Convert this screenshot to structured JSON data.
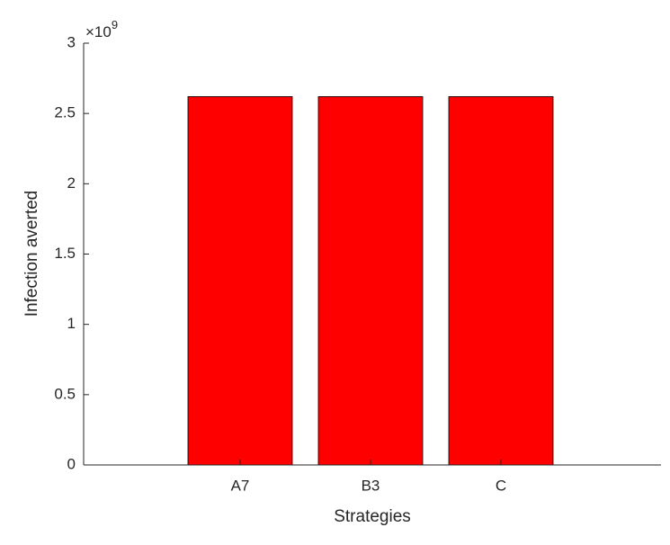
{
  "chart_data": {
    "type": "bar",
    "xlabel": "Strategies",
    "ylabel": "Infection averted",
    "exponent_base": "×10",
    "exponent_power": "9",
    "categories": [
      "A7",
      "B3",
      "C"
    ],
    "values": [
      2620000000,
      2620000000,
      2620000000
    ],
    "color": "#ff0000",
    "ylim": [
      0,
      3000000000
    ],
    "yticks": [
      0,
      {
        "value": 500000000,
        "label": "0.5"
      },
      {
        "value": 1000000000,
        "label": "1"
      },
      {
        "value": 1500000000,
        "label": "1.5"
      },
      {
        "value": 2000000000,
        "label": "2"
      },
      {
        "value": 2500000000,
        "label": "2.5"
      },
      {
        "value": 3000000000,
        "label": "3"
      }
    ],
    "grid": false
  }
}
